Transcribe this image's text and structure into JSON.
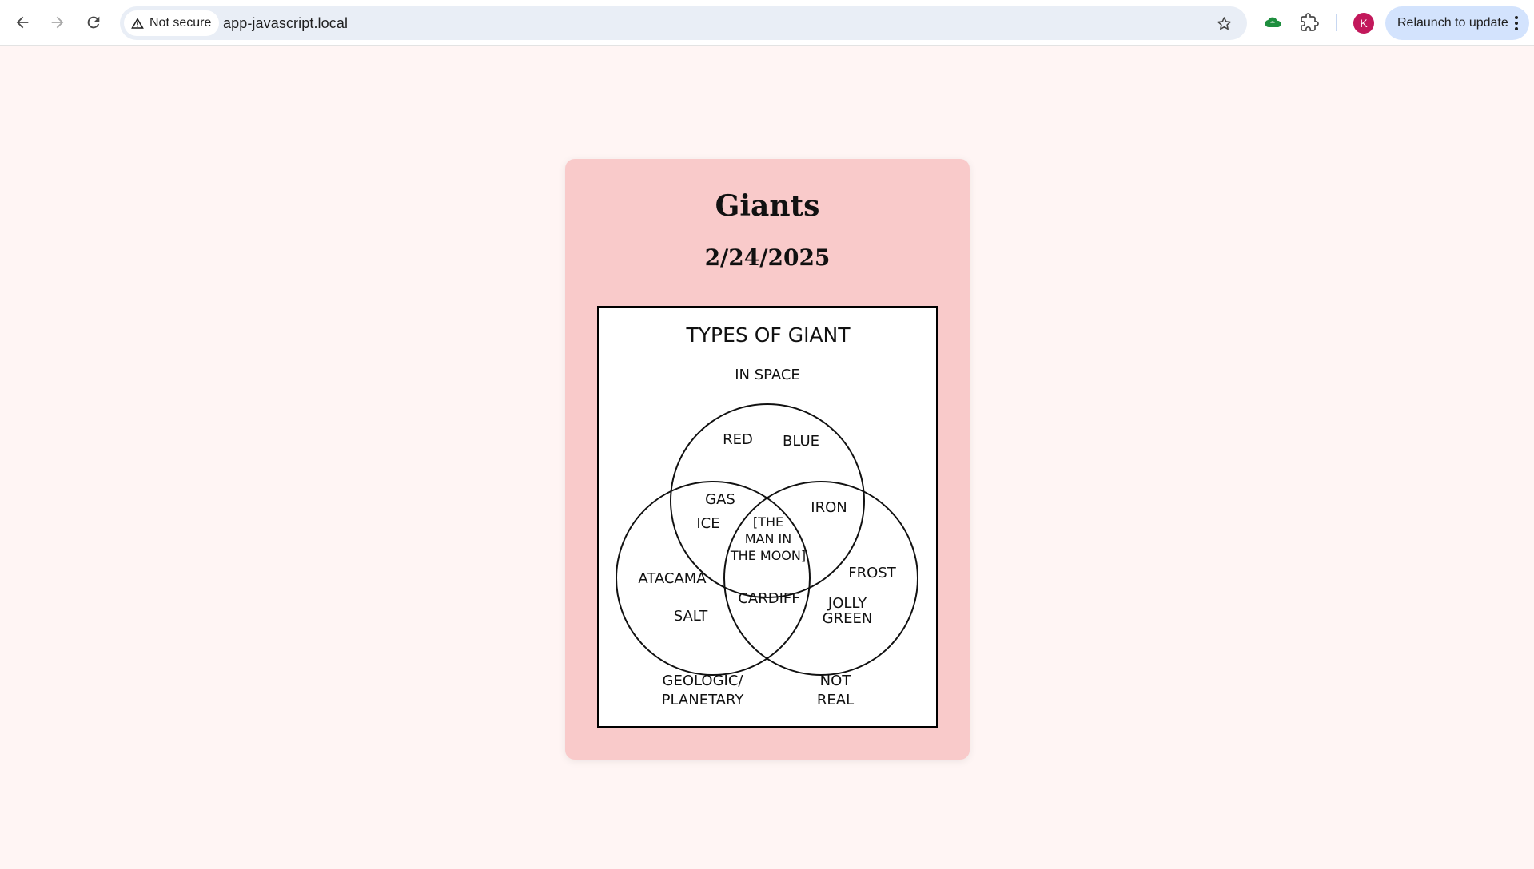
{
  "browser": {
    "security_label": "Not secure",
    "url": "app-javascript.local",
    "avatar_letter": "K",
    "relaunch_label": "Relaunch to update"
  },
  "card": {
    "title": "Giants",
    "date": "2/24/2025",
    "background": "#f9caca"
  },
  "comic": {
    "title": "TYPES OF GIANT",
    "set_labels": {
      "top": "IN SPACE",
      "bottom_left_1": "GEOLOGIC/",
      "bottom_left_2": "PLANETARY",
      "bottom_right_1": "NOT",
      "bottom_right_2": "REAL"
    },
    "items": {
      "red": "RED",
      "blue": "BLUE",
      "gas": "GAS",
      "ice": "ICE",
      "iron": "IRON",
      "center_1": "[THE",
      "center_2": "MAN IN",
      "center_3": "THE MOON]",
      "atacama": "ATACAMA",
      "salt": "SALT",
      "cardiff": "CARDIFF",
      "frost": "FROST",
      "jolly_1": "JOLLY",
      "jolly_2": "GREEN"
    }
  }
}
